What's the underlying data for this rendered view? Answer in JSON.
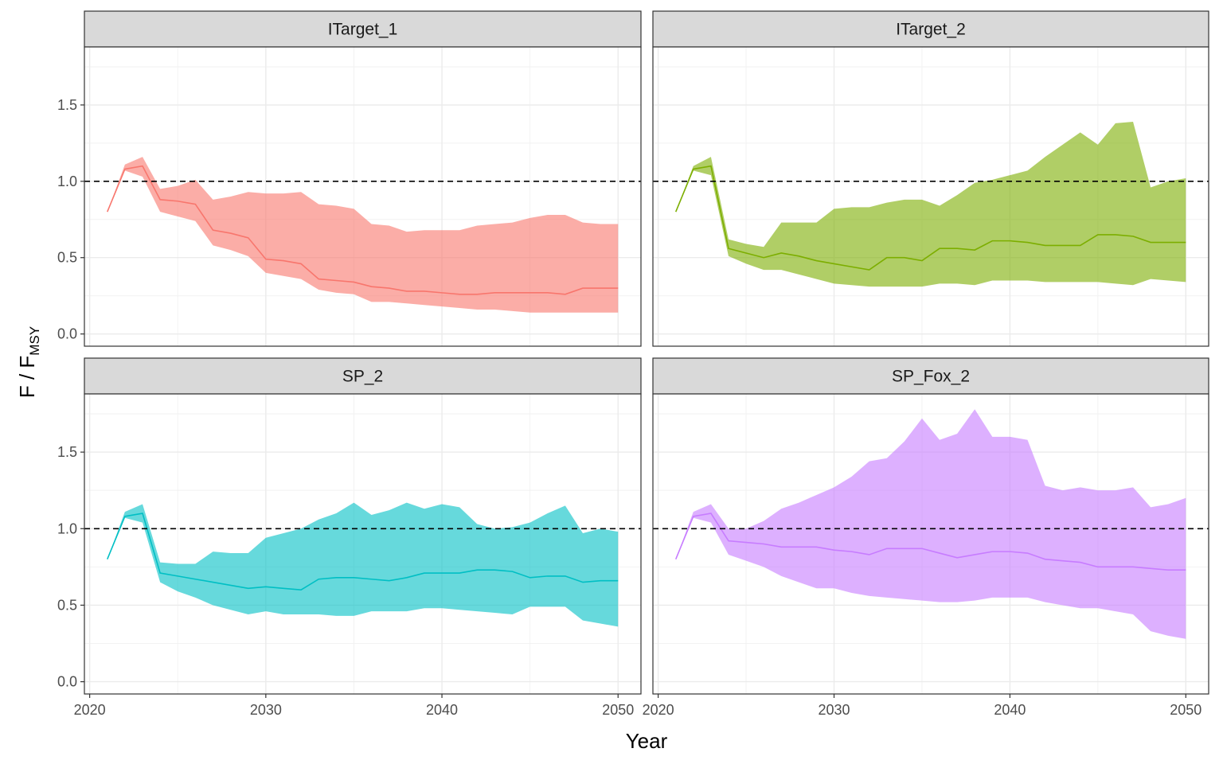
{
  "chart_data": {
    "type": "area",
    "xlabel": "Year",
    "ylabel": {
      "main": "F / F",
      "subscript": "MSY"
    },
    "xlim": [
      2019.7,
      2051.3
    ],
    "ylim": [
      -0.08,
      1.88
    ],
    "x_ticks": [
      2020,
      2030,
      2040,
      2050
    ],
    "y_ticks": [
      0.0,
      0.5,
      1.0,
      1.5
    ],
    "x_tick_labels": [
      "2020",
      "2030",
      "2040",
      "2050"
    ],
    "y_tick_labels": [
      "0.0",
      "0.5",
      "1.0",
      "1.5"
    ],
    "reference_line": {
      "y": 1.0,
      "style": "dashed"
    },
    "grid": true,
    "panels": [
      {
        "label": "ITarget_1",
        "color": "#F8766D",
        "x": [
          2021,
          2022,
          2023,
          2024,
          2025,
          2026,
          2027,
          2028,
          2029,
          2030,
          2031,
          2032,
          2033,
          2034,
          2035,
          2036,
          2037,
          2038,
          2039,
          2040,
          2041,
          2042,
          2043,
          2044,
          2045,
          2046,
          2047,
          2048,
          2049,
          2050
        ],
        "median": [
          0.8,
          1.08,
          1.1,
          0.88,
          0.87,
          0.85,
          0.68,
          0.66,
          0.63,
          0.49,
          0.48,
          0.46,
          0.36,
          0.35,
          0.34,
          0.31,
          0.3,
          0.28,
          0.28,
          0.27,
          0.26,
          0.26,
          0.27,
          0.27,
          0.27,
          0.27,
          0.26,
          0.3,
          0.3,
          0.3
        ],
        "lower": [
          0.8,
          1.07,
          1.03,
          0.8,
          0.77,
          0.74,
          0.58,
          0.55,
          0.51,
          0.4,
          0.38,
          0.36,
          0.29,
          0.27,
          0.26,
          0.21,
          0.21,
          0.2,
          0.19,
          0.18,
          0.17,
          0.16,
          0.16,
          0.15,
          0.14,
          0.14,
          0.14,
          0.14,
          0.14,
          0.14
        ],
        "upper": [
          0.8,
          1.11,
          1.16,
          0.95,
          0.97,
          1.01,
          0.88,
          0.9,
          0.93,
          0.92,
          0.92,
          0.93,
          0.85,
          0.84,
          0.82,
          0.72,
          0.71,
          0.67,
          0.68,
          0.68,
          0.68,
          0.71,
          0.72,
          0.73,
          0.76,
          0.78,
          0.78,
          0.73,
          0.72,
          0.72
        ]
      },
      {
        "label": "ITarget_2",
        "color": "#7CAE00",
        "x": [
          2021,
          2022,
          2023,
          2024,
          2025,
          2026,
          2027,
          2028,
          2029,
          2030,
          2031,
          2032,
          2033,
          2034,
          2035,
          2036,
          2037,
          2038,
          2039,
          2040,
          2041,
          2042,
          2043,
          2044,
          2045,
          2046,
          2047,
          2048,
          2049,
          2050
        ],
        "median": [
          0.8,
          1.08,
          1.1,
          0.56,
          0.53,
          0.5,
          0.53,
          0.51,
          0.48,
          0.46,
          0.44,
          0.42,
          0.5,
          0.5,
          0.48,
          0.56,
          0.56,
          0.55,
          0.61,
          0.61,
          0.6,
          0.58,
          0.58,
          0.58,
          0.65,
          0.65,
          0.64,
          0.6,
          0.6,
          0.6
        ],
        "lower": [
          0.8,
          1.07,
          1.04,
          0.51,
          0.46,
          0.42,
          0.42,
          0.39,
          0.36,
          0.33,
          0.32,
          0.31,
          0.31,
          0.31,
          0.31,
          0.33,
          0.33,
          0.32,
          0.35,
          0.35,
          0.35,
          0.34,
          0.34,
          0.34,
          0.34,
          0.33,
          0.32,
          0.36,
          0.35,
          0.34
        ],
        "upper": [
          0.8,
          1.1,
          1.16,
          0.62,
          0.59,
          0.57,
          0.73,
          0.73,
          0.73,
          0.82,
          0.83,
          0.83,
          0.86,
          0.88,
          0.88,
          0.84,
          0.91,
          0.99,
          1.01,
          1.04,
          1.07,
          1.16,
          1.24,
          1.32,
          1.24,
          1.38,
          1.39,
          0.96,
          1.0,
          1.02
        ]
      },
      {
        "label": "SP_2",
        "color": "#00BFC4",
        "x": [
          2021,
          2022,
          2023,
          2024,
          2025,
          2026,
          2027,
          2028,
          2029,
          2030,
          2031,
          2032,
          2033,
          2034,
          2035,
          2036,
          2037,
          2038,
          2039,
          2040,
          2041,
          2042,
          2043,
          2044,
          2045,
          2046,
          2047,
          2048,
          2049,
          2050
        ],
        "median": [
          0.8,
          1.08,
          1.1,
          0.71,
          0.69,
          0.67,
          0.65,
          0.63,
          0.61,
          0.62,
          0.61,
          0.6,
          0.67,
          0.68,
          0.68,
          0.67,
          0.66,
          0.68,
          0.71,
          0.71,
          0.71,
          0.73,
          0.73,
          0.72,
          0.68,
          0.69,
          0.69,
          0.65,
          0.66,
          0.66
        ],
        "lower": [
          0.8,
          1.07,
          1.04,
          0.65,
          0.59,
          0.55,
          0.5,
          0.47,
          0.44,
          0.46,
          0.44,
          0.44,
          0.44,
          0.43,
          0.43,
          0.46,
          0.46,
          0.46,
          0.48,
          0.48,
          0.47,
          0.46,
          0.45,
          0.44,
          0.49,
          0.49,
          0.49,
          0.4,
          0.38,
          0.36
        ],
        "upper": [
          0.8,
          1.11,
          1.16,
          0.78,
          0.77,
          0.77,
          0.85,
          0.84,
          0.84,
          0.94,
          0.97,
          1.0,
          1.06,
          1.1,
          1.17,
          1.09,
          1.12,
          1.17,
          1.13,
          1.16,
          1.14,
          1.03,
          1.0,
          1.01,
          1.04,
          1.1,
          1.15,
          0.97,
          1.0,
          0.98
        ]
      },
      {
        "label": "SP_Fox_2",
        "color": "#C77CFF",
        "x": [
          2021,
          2022,
          2023,
          2024,
          2025,
          2026,
          2027,
          2028,
          2029,
          2030,
          2031,
          2032,
          2033,
          2034,
          2035,
          2036,
          2037,
          2038,
          2039,
          2040,
          2041,
          2042,
          2043,
          2044,
          2045,
          2046,
          2047,
          2048,
          2049,
          2050
        ],
        "median": [
          0.8,
          1.08,
          1.1,
          0.92,
          0.91,
          0.9,
          0.88,
          0.88,
          0.88,
          0.86,
          0.85,
          0.83,
          0.87,
          0.87,
          0.87,
          0.84,
          0.81,
          0.83,
          0.85,
          0.85,
          0.84,
          0.8,
          0.79,
          0.78,
          0.75,
          0.75,
          0.75,
          0.74,
          0.73,
          0.73
        ],
        "lower": [
          0.8,
          1.07,
          1.04,
          0.83,
          0.79,
          0.75,
          0.69,
          0.65,
          0.61,
          0.61,
          0.58,
          0.56,
          0.55,
          0.54,
          0.53,
          0.52,
          0.52,
          0.53,
          0.55,
          0.55,
          0.55,
          0.52,
          0.5,
          0.48,
          0.48,
          0.46,
          0.44,
          0.33,
          0.3,
          0.28
        ],
        "upper": [
          0.8,
          1.11,
          1.16,
          1.0,
          1.0,
          1.05,
          1.13,
          1.17,
          1.22,
          1.27,
          1.34,
          1.44,
          1.46,
          1.57,
          1.72,
          1.58,
          1.62,
          1.78,
          1.6,
          1.6,
          1.58,
          1.28,
          1.25,
          1.27,
          1.25,
          1.25,
          1.27,
          1.14,
          1.16,
          1.2
        ]
      }
    ]
  }
}
